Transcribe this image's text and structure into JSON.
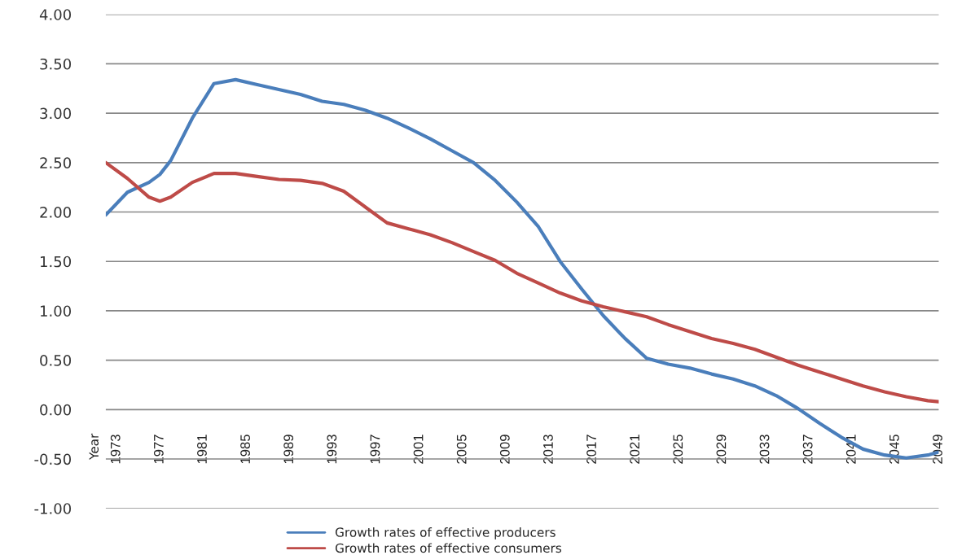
{
  "chart_data": {
    "type": "line",
    "annotations": [
      "Year"
    ],
    "x": [
      1972,
      1974,
      1976,
      1977,
      1978,
      1980,
      1982,
      1984,
      1986,
      1988,
      1990,
      1992,
      1994,
      1996,
      1998,
      2000,
      2002,
      2004,
      2006,
      2008,
      2010,
      2012,
      2014,
      2016,
      2018,
      2020,
      2022,
      2024,
      2026,
      2028,
      2030,
      2032,
      2034,
      2036,
      2038,
      2040,
      2042,
      2044,
      2046,
      2048,
      2049
    ],
    "series": [
      {
        "name": "Growth rates of effective producers",
        "color": "#4a7ebb",
        "values": [
          1.97,
          2.2,
          2.3,
          2.38,
          2.52,
          2.95,
          3.3,
          3.34,
          3.29,
          3.24,
          3.19,
          3.12,
          3.09,
          3.03,
          2.95,
          2.85,
          2.74,
          2.62,
          2.5,
          2.32,
          2.1,
          1.85,
          1.5,
          1.22,
          0.95,
          0.72,
          0.52,
          0.46,
          0.42,
          0.36,
          0.31,
          0.24,
          0.14,
          0.01,
          -0.14,
          -0.28,
          -0.4,
          -0.46,
          -0.49,
          -0.46,
          -0.43
        ]
      },
      {
        "name": "Growth rates of effective consumers",
        "color": "#be4b48",
        "values": [
          2.5,
          2.34,
          2.15,
          2.11,
          2.15,
          2.3,
          2.39,
          2.39,
          2.36,
          2.33,
          2.32,
          2.29,
          2.21,
          2.05,
          1.89,
          1.83,
          1.77,
          1.69,
          1.6,
          1.51,
          1.38,
          1.28,
          1.18,
          1.1,
          1.04,
          0.99,
          0.94,
          0.86,
          0.79,
          0.72,
          0.67,
          0.61,
          0.53,
          0.45,
          0.38,
          0.31,
          0.24,
          0.18,
          0.13,
          0.09,
          0.08
        ]
      }
    ],
    "xlim": [
      1972,
      2049
    ],
    "xticks": [
      1973,
      1977,
      1981,
      1985,
      1989,
      1993,
      1997,
      2001,
      2005,
      2009,
      2013,
      2017,
      2021,
      2025,
      2029,
      2033,
      2037,
      2041,
      2045,
      2049
    ],
    "ylim": [
      -1.0,
      4.0
    ],
    "yticks": [
      {
        "value": -1.0,
        "label": "-1.00"
      },
      {
        "value": -0.5,
        "label": "-0.50"
      },
      {
        "value": 0.0,
        "label": "0.00"
      },
      {
        "value": 0.5,
        "label": "0.50"
      },
      {
        "value": 1.0,
        "label": "1.00"
      },
      {
        "value": 1.5,
        "label": "1.50"
      },
      {
        "value": 2.0,
        "label": "2.00"
      },
      {
        "value": 2.5,
        "label": "2.50"
      },
      {
        "value": 3.0,
        "label": "3.00"
      },
      {
        "value": 3.5,
        "label": "3.50"
      },
      {
        "value": 4.0,
        "label": "4.00"
      }
    ],
    "grid": "y",
    "legend": "bottom",
    "line_style": "solid"
  }
}
